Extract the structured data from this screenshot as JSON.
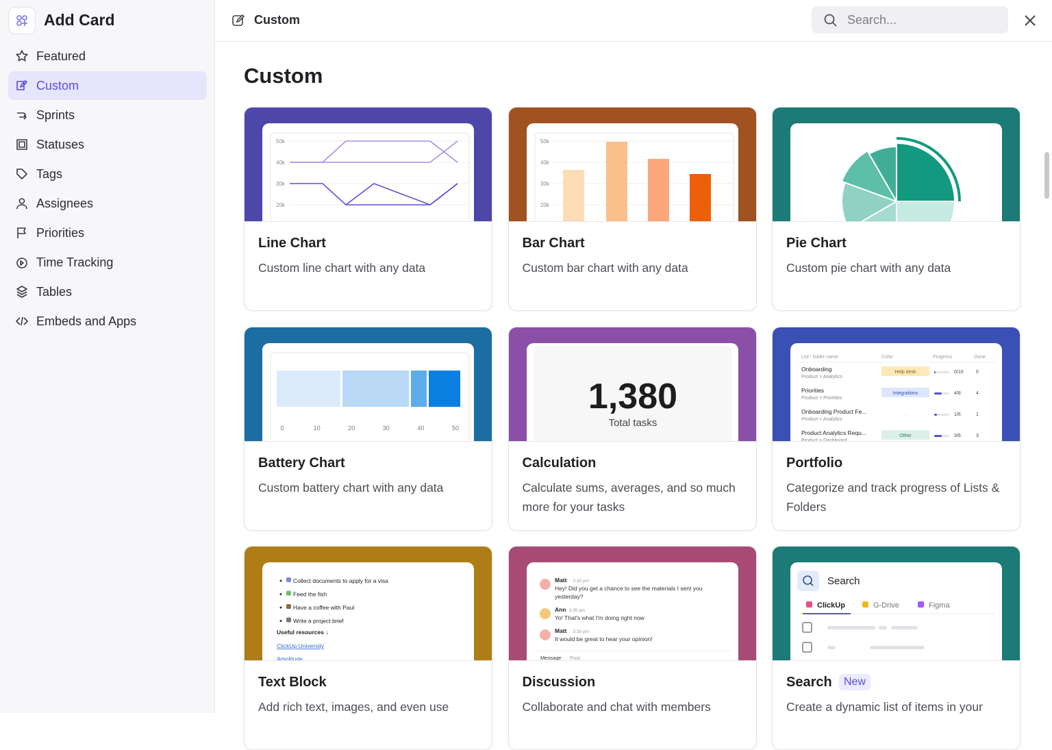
{
  "sidebar": {
    "title": "Add Card",
    "items": [
      "Featured",
      "Custom",
      "Sprints",
      "Statuses",
      "Tags",
      "Assignees",
      "Priorities",
      "Time Tracking",
      "Tables",
      "Embeds and Apps"
    ]
  },
  "header": {
    "title": "Custom",
    "search_placeholder": "Search..."
  },
  "section_title": "Custom",
  "cards": [
    {
      "title": "Line Chart",
      "description": "Custom line chart with any data",
      "preview": {
        "yticks": [
          "50k",
          "40k",
          "30k",
          "20k"
        ]
      }
    },
    {
      "title": "Bar Chart",
      "description": "Custom bar chart with any data",
      "preview": {
        "yticks": [
          "50k",
          "40k",
          "30k",
          "20k"
        ]
      }
    },
    {
      "title": "Pie Chart",
      "description": "Custom pie chart with any data"
    },
    {
      "title": "Battery Chart",
      "description": "Custom battery chart with any data",
      "preview": {
        "xticks": [
          0,
          10,
          20,
          30,
          40,
          50
        ]
      }
    },
    {
      "title": "Calculation",
      "description": "Calculate sums, averages, and so much more for your tasks",
      "preview": {
        "value": "1,380",
        "label": "Total tasks"
      }
    },
    {
      "title": "Portfolio",
      "description": "Categorize and track progress of Lists & Folders",
      "preview": {
        "columns": [
          "List / folder name",
          "Color",
          "Progress",
          "Done"
        ],
        "rows": [
          {
            "name": "Onboarding",
            "path": "Product > Analytics",
            "color": "Help desk",
            "progress": "0/10",
            "done": 0
          },
          {
            "name": "Priorities",
            "path": "Product > Priorities",
            "color": "Integrations",
            "progress": "4/8",
            "done": 4
          },
          {
            "name": "Onboarding Product Fe...",
            "path": "Product > Analytics",
            "color": "-",
            "progress": "1/6",
            "done": 1
          },
          {
            "name": "Product Analytics Requ...",
            "path": "Product > Dashboard",
            "color": "Other",
            "progress": "3/6",
            "done": 3
          }
        ]
      }
    },
    {
      "title": "Text Block",
      "description": "Add rich text, images, and even use",
      "preview": {
        "bullets": [
          "Collect documents to apply for a visa",
          "Feed the fish",
          "Have a coffee with Paul",
          "Write a project brief"
        ],
        "heading": "Useful resources ↓",
        "links": [
          "ClickUp University",
          "Amplitude"
        ]
      }
    },
    {
      "title": "Discussion",
      "description": "Collaborate and chat with members",
      "preview": {
        "messages": [
          {
            "author": "Matt",
            "time": "3:30 pm",
            "lines": [
              "Hey! Did you get a chance to see the materials I sent you",
              "yesterday?"
            ]
          },
          {
            "author": "Ann",
            "time": "3:35 pm",
            "lines": [
              "Yo! That's what I'm doing right now"
            ]
          },
          {
            "author": "Matt",
            "time": "3:38 pm",
            "lines": [
              "It would be great to hear your opinion!"
            ]
          }
        ],
        "tabs": [
          "Message",
          "Post"
        ]
      }
    },
    {
      "title": "Search",
      "badge": "New",
      "description": "Create a dynamic list of items in your",
      "preview": {
        "label": "Search",
        "tabs": [
          "ClickUp",
          "G-Drive",
          "Figma"
        ]
      }
    }
  ]
}
